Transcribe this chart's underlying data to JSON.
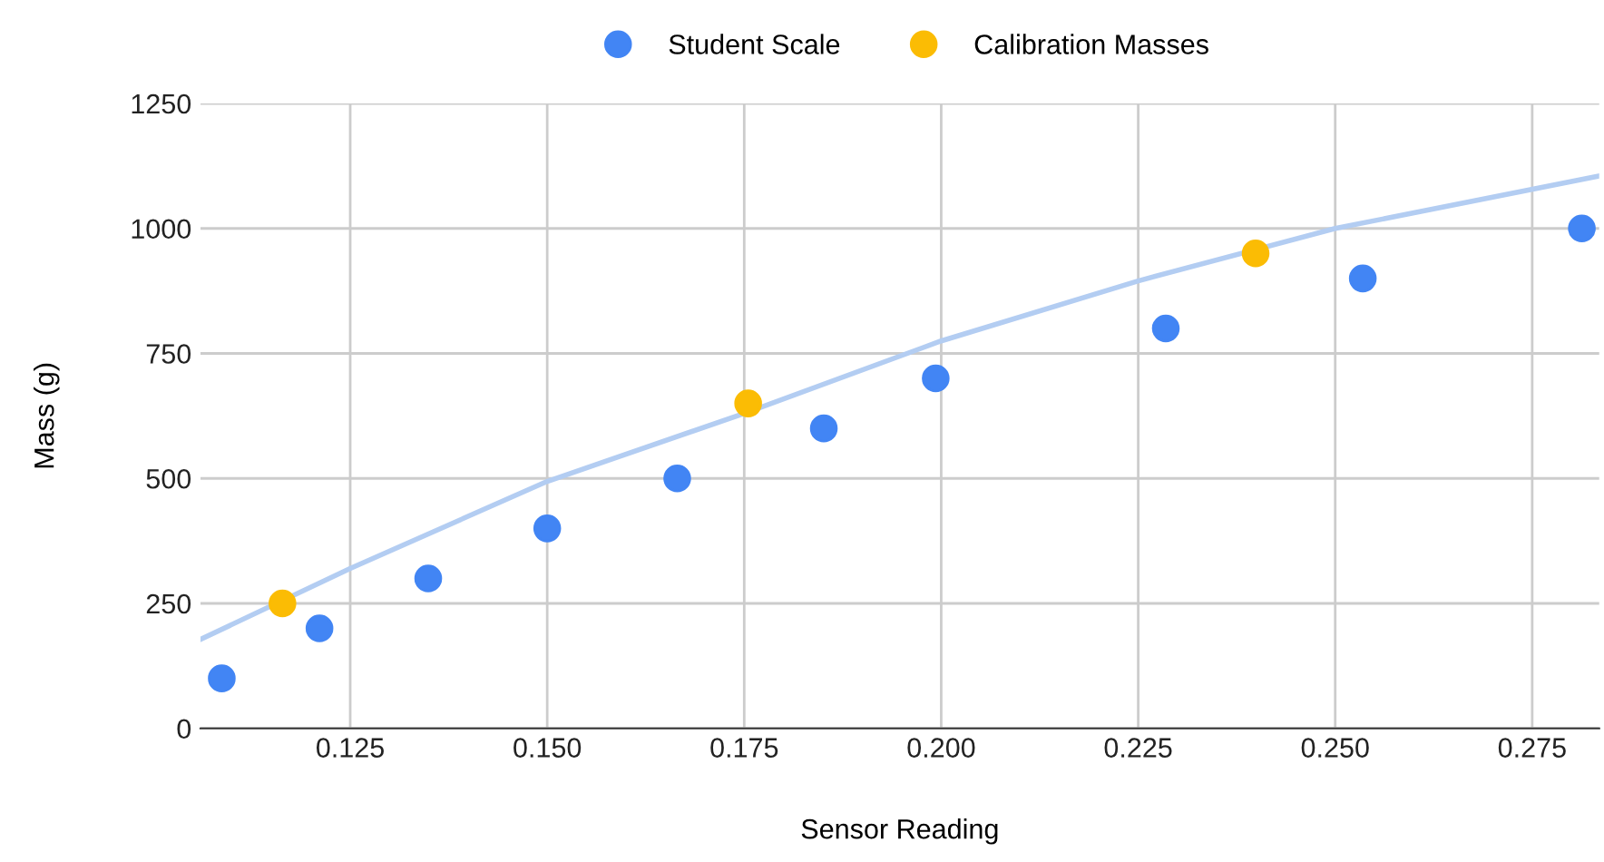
{
  "chart_data": {
    "type": "scatter",
    "xlabel": "Sensor Reading",
    "ylabel": "Mass (g)",
    "xlim": [
      0.106,
      0.2835
    ],
    "xticks": [
      {
        "value": 0.125,
        "label": "0.125"
      },
      {
        "value": 0.15,
        "label": "0.150"
      },
      {
        "value": 0.175,
        "label": "0.175"
      },
      {
        "value": 0.2,
        "label": "0.200"
      },
      {
        "value": 0.225,
        "label": "0.225"
      },
      {
        "value": 0.25,
        "label": "0.250"
      },
      {
        "value": 0.275,
        "label": "0.275"
      }
    ],
    "ylim": [
      0,
      1250
    ],
    "yticks": [
      0,
      250,
      500,
      750,
      1000,
      1250
    ],
    "grid": true,
    "legend": "top",
    "marker": "circle",
    "series": [
      {
        "name": "Student Scale",
        "color": "#4285f4",
        "x": [
          0.1087,
          0.1211,
          0.1349,
          0.15,
          0.1665,
          0.1851,
          0.1993,
          0.2285,
          0.2535,
          0.2813
        ],
        "values": [
          100,
          200,
          300,
          400,
          500,
          600,
          700,
          800,
          900,
          1000
        ]
      },
      {
        "name": "Calibration Masses",
        "color": "#fbbc04",
        "x": [
          0.1164,
          0.1755,
          0.2399
        ],
        "values": [
          250,
          650,
          950
        ]
      },
      {
        "type": "line",
        "marker": "none",
        "color": "#b3cdf2",
        "x": [
          0.106,
          0.125,
          0.15,
          0.175,
          0.2,
          0.225,
          0.25,
          0.2835
        ],
        "values": [
          178,
          320,
          494,
          630,
          775,
          895,
          1000,
          1105
        ]
      }
    ]
  }
}
